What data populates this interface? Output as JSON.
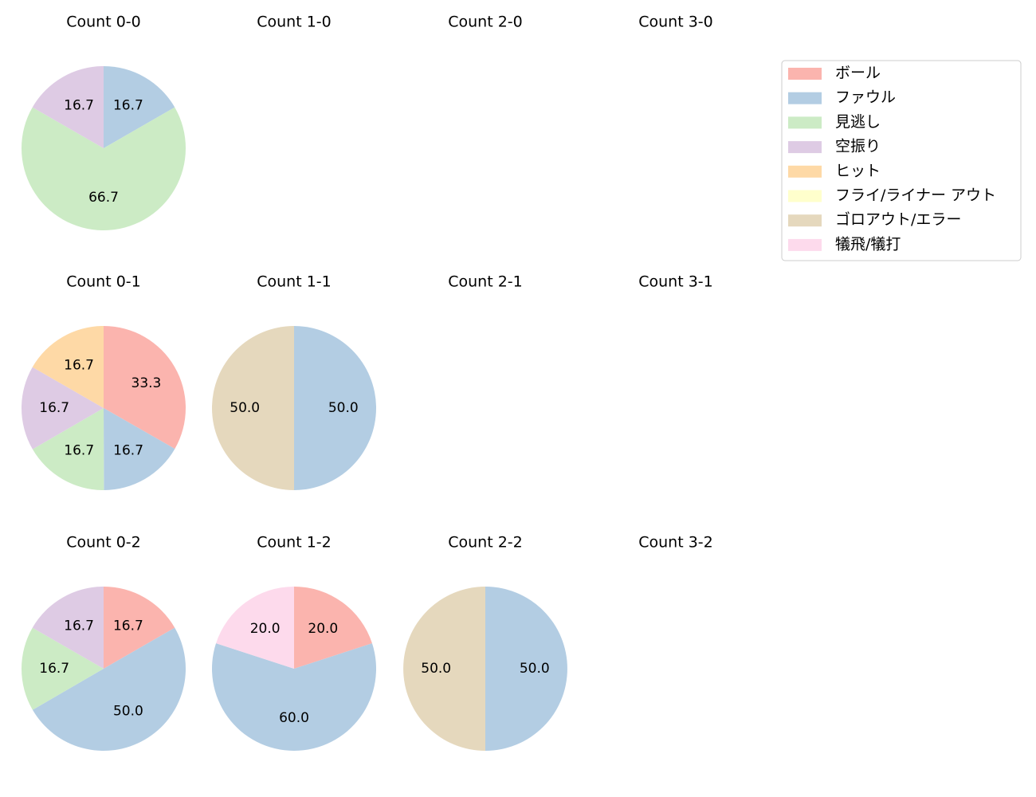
{
  "chart_data": [
    {
      "type": "pie",
      "title": "Count 0-0",
      "values": [
        16.7,
        66.7,
        16.7
      ],
      "value_labels": [
        "16.7",
        "66.7",
        "16.7"
      ],
      "colors": [
        "#b3cde3",
        "#ccebc5",
        "#decbe4"
      ]
    },
    {
      "type": "pie",
      "title": "Count 1-0"
    },
    {
      "type": "pie",
      "title": "Count 2-0"
    },
    {
      "type": "pie",
      "title": "Count 3-0"
    },
    {
      "type": "pie",
      "title": "Count 0-1",
      "values": [
        33.3,
        16.7,
        16.7,
        16.7,
        16.7
      ],
      "value_labels": [
        "33.3",
        "16.7",
        "16.7",
        "16.7",
        "16.7"
      ],
      "colors": [
        "#fbb4ae",
        "#b3cde3",
        "#ccebc5",
        "#decbe4",
        "#fed9a6"
      ]
    },
    {
      "type": "pie",
      "title": "Count 1-1",
      "values": [
        50,
        50
      ],
      "value_labels": [
        "50.0",
        "50.0"
      ],
      "colors": [
        "#b3cde3",
        "#e5d8bd"
      ]
    },
    {
      "type": "pie",
      "title": "Count 2-1"
    },
    {
      "type": "pie",
      "title": "Count 3-1"
    },
    {
      "type": "pie",
      "title": "Count 0-2",
      "values": [
        16.7,
        50,
        16.7,
        16.7
      ],
      "value_labels": [
        "16.7",
        "50.0",
        "16.7",
        "16.7"
      ],
      "colors": [
        "#fbb4ae",
        "#b3cde3",
        "#ccebc5",
        "#decbe4"
      ]
    },
    {
      "type": "pie",
      "title": "Count 1-2",
      "values": [
        20,
        60,
        20
      ],
      "value_labels": [
        "20.0",
        "60.0",
        "20.0"
      ],
      "colors": [
        "#fbb4ae",
        "#b3cde3",
        "#fddaec"
      ]
    },
    {
      "type": "pie",
      "title": "Count 2-2",
      "values": [
        50,
        50
      ],
      "value_labels": [
        "50.0",
        "50.0"
      ],
      "colors": [
        "#b3cde3",
        "#e5d8bd"
      ]
    },
    {
      "type": "pie",
      "title": "Count 3-2"
    }
  ],
  "legend": {
    "labels": [
      "ボール",
      "ファウル",
      "見逃し",
      "空振り",
      "ヒット",
      "フライ/ライナー アウト",
      "ゴロアウト/エラー",
      "犠飛/犠打"
    ],
    "colors": [
      "#fbb4ae",
      "#b3cde3",
      "#ccebc5",
      "#decbe4",
      "#fed9a6",
      "#ffffcc",
      "#e5d8bd",
      "#fddaec"
    ]
  }
}
